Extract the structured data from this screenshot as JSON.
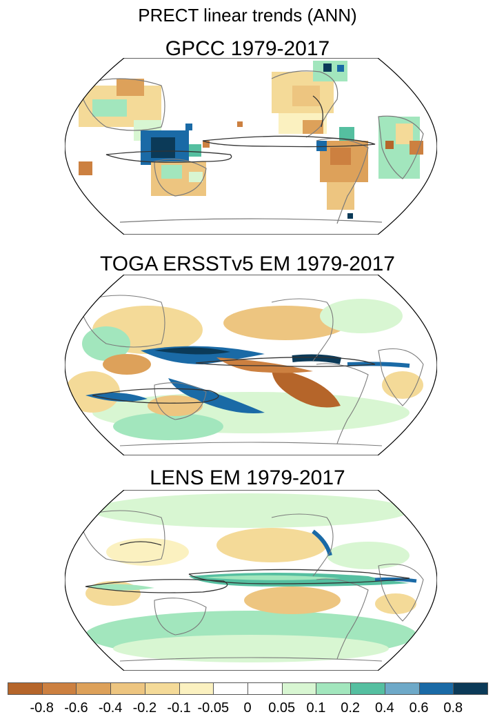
{
  "figure": {
    "title": "PRECT linear trends (ANN)",
    "panels": [
      {
        "id": "gpcc",
        "title": "GPCC 1979-2017",
        "type": "observed-land-gridded"
      },
      {
        "id": "toga",
        "title": "TOGA ERSSTv5 EM 1979-2017",
        "type": "model-global"
      },
      {
        "id": "lens",
        "title": "LENS EM 1979-2017",
        "type": "model-global"
      }
    ]
  },
  "colorbar": {
    "labels": [
      "-0.8",
      "-0.6",
      "-0.4",
      "-0.2",
      "-0.1",
      "-0.05",
      "0",
      "0.05",
      "0.1",
      "0.2",
      "0.4",
      "0.6",
      "0.8"
    ],
    "colors": [
      "#b5652a",
      "#cc8040",
      "#dda15a",
      "#edc580",
      "#f4da98",
      "#fbf1c0",
      "#ffffff",
      "#ffffff",
      "#d8f6d2",
      "#a2e6bd",
      "#55bfa0",
      "#6ea9c8",
      "#1a6aa6",
      "#0b3a58"
    ]
  },
  "map_colors": {
    "land_outline": "#7a7a7a",
    "contour": "#333333",
    "dry_strong": "#b5652a",
    "dry": "#dda15a",
    "dry_light": "#f4da98",
    "wet_light": "#d8f6d2",
    "wet": "#a2e6bd",
    "wet_mid": "#55bfa0",
    "wet_strong": "#1a6aa6",
    "wet_max": "#0b3a58"
  }
}
